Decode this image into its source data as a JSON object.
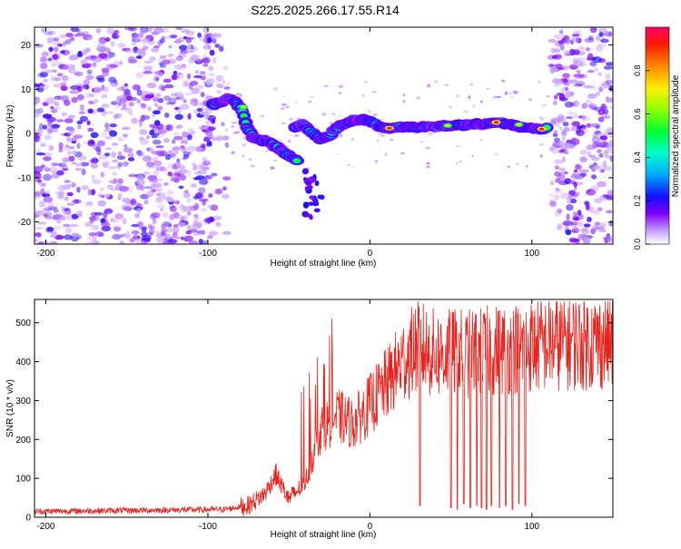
{
  "title": "S225.2025.266.17.55.R14",
  "colors": {
    "line": "#e8221c",
    "axis": "#000000",
    "background": "#ffffff"
  },
  "chart_data": [
    {
      "type": "heatmap",
      "title": "S225.2025.266.17.55.R14",
      "xlabel": "Height of straight line (km)",
      "ylabel": "Frequency (Hz)",
      "xlim": [
        -207,
        150
      ],
      "ylim": [
        -25,
        24
      ],
      "x_ticks": [
        -200,
        -100,
        0,
        100
      ],
      "y_ticks": [
        -20,
        -10,
        0,
        10,
        20
      ],
      "colorbar": {
        "label": "Normalized spectral amplitude",
        "range": [
          0.0,
          1.0
        ],
        "ticks": [
          0.0,
          0.2,
          0.4,
          0.6,
          0.8
        ]
      },
      "ridge": {
        "x": [
          -97,
          -92,
          -88,
          -84,
          -80,
          -76,
          -72,
          -68,
          -64,
          -60,
          -56,
          -52,
          -48,
          -44
        ],
        "y": [
          6.5,
          7.2,
          7.8,
          7.4,
          6.0,
          1.5,
          -1.0,
          -1.5,
          -1.8,
          -2.5,
          -3.5,
          -4.5,
          -5.5,
          -6.5
        ]
      },
      "ridge2": {
        "x": [
          -46,
          -42,
          -38,
          -34,
          -30,
          -26,
          -22,
          -18,
          -14,
          -10,
          -6,
          -2,
          2,
          6,
          10,
          14,
          18,
          22,
          26,
          30,
          34,
          38,
          42,
          46,
          50,
          54,
          58,
          62,
          66,
          70,
          74,
          78,
          82,
          86,
          90,
          94,
          98,
          102,
          106,
          110
        ],
        "y": [
          1.5,
          2.0,
          1.0,
          -0.5,
          -1.5,
          -0.8,
          0.5,
          1.8,
          2.5,
          3.0,
          3.2,
          3.0,
          2.5,
          1.5,
          1.0,
          1.2,
          1.5,
          1.5,
          1.4,
          1.3,
          1.5,
          1.6,
          1.5,
          1.8,
          1.8,
          2.0,
          1.8,
          2.0,
          2.2,
          2.0,
          2.2,
          2.5,
          2.3,
          2.0,
          1.8,
          1.5,
          1.2,
          1.0,
          1.0,
          1.2
        ]
      },
      "peaks": [
        [
          12,
          1.2
        ],
        [
          48,
          1.8
        ],
        [
          78,
          2.5
        ],
        [
          92,
          2.0
        ],
        [
          106,
          1.0
        ],
        [
          -78,
          6.0
        ]
      ]
    },
    {
      "type": "line",
      "xlabel": "Height of straight line (km)",
      "ylabel": "SNR (10 * v/v)",
      "xlim": [
        -207,
        150
      ],
      "ylim": [
        0,
        560
      ],
      "x_ticks": [
        -200,
        -100,
        0,
        100
      ],
      "y_ticks": [
        0,
        100,
        200,
        300,
        400,
        500
      ],
      "series": [
        {
          "name": "SNR",
          "trend_x": [
            -207,
            -90,
            -75,
            -65,
            -58,
            -50,
            -40,
            -30,
            -20,
            -10,
            0,
            10,
            20,
            30,
            40,
            60,
            80,
            100,
            120,
            150
          ],
          "trend_y": [
            15,
            20,
            30,
            60,
            110,
            45,
            90,
            230,
            260,
            240,
            290,
            340,
            400,
            440,
            420,
            420,
            430,
            440,
            450,
            450
          ],
          "dropouts_x": [
            31,
            50,
            54,
            58,
            62,
            66,
            69,
            72,
            75,
            80,
            84,
            88,
            92,
            96
          ],
          "dropouts_y": [
            30,
            25,
            20,
            35,
            25,
            30,
            25,
            20,
            30,
            25,
            30,
            20,
            35,
            30
          ]
        }
      ]
    }
  ]
}
